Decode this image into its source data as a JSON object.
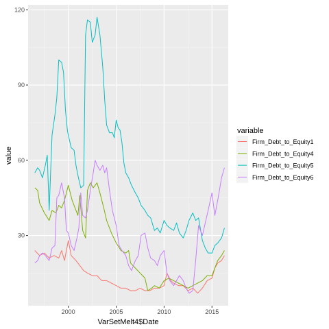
{
  "chart_data": {
    "type": "line",
    "title": "",
    "xlabel": "VarSetMelt4$Date",
    "ylabel": "value",
    "xlim": [
      1995.8,
      2016.7
    ],
    "ylim": [
      2,
      122
    ],
    "x_ticks": [
      2000,
      2005,
      2010,
      2015
    ],
    "x_tick_labels": [
      "2000",
      "2005",
      "2010",
      "2015"
    ],
    "y_ticks": [
      30,
      60,
      90,
      120
    ],
    "y_tick_labels": [
      "30",
      "60",
      "90",
      "120"
    ],
    "grid": true,
    "legend": {
      "title": "variable",
      "position": "right"
    },
    "series": [
      {
        "name": "Firm_Debt_to_Equity1",
        "color": "#F8766D",
        "points": [
          [
            1996.5,
            24
          ],
          [
            1997.0,
            22
          ],
          [
            1997.5,
            23
          ],
          [
            1998.0,
            21
          ],
          [
            1998.5,
            22
          ],
          [
            1999.0,
            21
          ],
          [
            1999.3,
            24
          ],
          [
            1999.6,
            20
          ],
          [
            2000.0,
            28
          ],
          [
            2000.3,
            22
          ],
          [
            2000.8,
            20
          ],
          [
            2001.2,
            18
          ],
          [
            2001.6,
            16
          ],
          [
            2002.0,
            15
          ],
          [
            2002.5,
            14
          ],
          [
            2003.0,
            14
          ],
          [
            2003.5,
            12
          ],
          [
            2004.0,
            12
          ],
          [
            2004.5,
            11
          ],
          [
            2005.0,
            10
          ],
          [
            2005.5,
            9
          ],
          [
            2006.0,
            9
          ],
          [
            2006.5,
            8
          ],
          [
            2007.0,
            8
          ],
          [
            2007.5,
            9
          ],
          [
            2008.0,
            8
          ],
          [
            2008.5,
            8
          ],
          [
            2009.0,
            9
          ],
          [
            2009.5,
            9
          ],
          [
            2010.0,
            10
          ],
          [
            2010.3,
            15
          ],
          [
            2010.7,
            12
          ],
          [
            2011.0,
            11
          ],
          [
            2011.5,
            10
          ],
          [
            2012.0,
            10
          ],
          [
            2012.5,
            8
          ],
          [
            2013.0,
            9
          ],
          [
            2013.5,
            7
          ],
          [
            2014.0,
            9
          ],
          [
            2014.5,
            12
          ],
          [
            2015.0,
            13
          ],
          [
            2015.3,
            17
          ],
          [
            2015.6,
            19
          ],
          [
            2016.0,
            20
          ],
          [
            2016.3,
            22
          ]
        ]
      },
      {
        "name": "Firm_Debt_to_Equity4",
        "color": "#7CAE00",
        "points": [
          [
            1996.5,
            49
          ],
          [
            1996.8,
            48
          ],
          [
            1997.0,
            43
          ],
          [
            1997.5,
            39
          ],
          [
            1998.0,
            36
          ],
          [
            1998.3,
            40
          ],
          [
            1998.7,
            39
          ],
          [
            1999.0,
            42
          ],
          [
            1999.3,
            41
          ],
          [
            1999.6,
            44
          ],
          [
            2000.0,
            50
          ],
          [
            2000.4,
            44
          ],
          [
            2000.8,
            40
          ],
          [
            2001.0,
            38
          ],
          [
            2001.2,
            46
          ],
          [
            2001.5,
            32
          ],
          [
            2001.8,
            29
          ],
          [
            2002.0,
            48
          ],
          [
            2002.3,
            51
          ],
          [
            2002.6,
            49
          ],
          [
            2003.0,
            51
          ],
          [
            2003.3,
            47
          ],
          [
            2003.7,
            41
          ],
          [
            2004.0,
            36
          ],
          [
            2004.5,
            31
          ],
          [
            2005.0,
            27
          ],
          [
            2005.5,
            24
          ],
          [
            2006.0,
            23
          ],
          [
            2006.3,
            24
          ],
          [
            2006.5,
            19
          ],
          [
            2007.0,
            17
          ],
          [
            2007.5,
            15
          ],
          [
            2008.0,
            13
          ],
          [
            2008.3,
            8
          ],
          [
            2008.7,
            9
          ],
          [
            2009.0,
            10
          ],
          [
            2009.5,
            9
          ],
          [
            2010.0,
            12
          ],
          [
            2010.5,
            13
          ],
          [
            2011.0,
            12
          ],
          [
            2011.5,
            11
          ],
          [
            2012.0,
            10
          ],
          [
            2012.5,
            9
          ],
          [
            2013.0,
            10
          ],
          [
            2013.5,
            11
          ],
          [
            2014.0,
            12
          ],
          [
            2014.5,
            14
          ],
          [
            2015.0,
            14
          ],
          [
            2015.3,
            17
          ],
          [
            2015.6,
            20
          ],
          [
            2016.0,
            22
          ],
          [
            2016.3,
            24
          ]
        ]
      },
      {
        "name": "Firm_Debt_to_Equity5",
        "color": "#00BFC4",
        "points": [
          [
            1996.5,
            55
          ],
          [
            1996.8,
            57
          ],
          [
            1997.0,
            56
          ],
          [
            1997.3,
            53
          ],
          [
            1997.6,
            58
          ],
          [
            1997.8,
            62
          ],
          [
            1998.0,
            40
          ],
          [
            1998.3,
            70
          ],
          [
            1998.6,
            78
          ],
          [
            1998.8,
            85
          ],
          [
            1999.0,
            100
          ],
          [
            1999.3,
            99
          ],
          [
            1999.5,
            95
          ],
          [
            1999.7,
            80
          ],
          [
            1999.9,
            72
          ],
          [
            2000.0,
            70
          ],
          [
            2000.3,
            65
          ],
          [
            2000.6,
            64
          ],
          [
            2000.8,
            58
          ],
          [
            2001.0,
            54
          ],
          [
            2001.3,
            49
          ],
          [
            2001.6,
            50
          ],
          [
            2001.8,
            110
          ],
          [
            2002.0,
            116
          ],
          [
            2002.3,
            115
          ],
          [
            2002.5,
            107
          ],
          [
            2002.8,
            110
          ],
          [
            2003.0,
            117
          ],
          [
            2003.3,
            110
          ],
          [
            2003.6,
            97
          ],
          [
            2003.8,
            84
          ],
          [
            2004.0,
            74
          ],
          [
            2004.3,
            71
          ],
          [
            2004.6,
            71
          ],
          [
            2004.8,
            69
          ],
          [
            2005.0,
            76
          ],
          [
            2005.2,
            73
          ],
          [
            2005.4,
            72
          ],
          [
            2005.6,
            67
          ],
          [
            2005.8,
            59
          ],
          [
            2006.0,
            55
          ],
          [
            2006.3,
            53
          ],
          [
            2006.6,
            50
          ],
          [
            2007.0,
            47
          ],
          [
            2007.3,
            45
          ],
          [
            2007.6,
            42
          ],
          [
            2008.0,
            40
          ],
          [
            2008.3,
            38
          ],
          [
            2008.6,
            37
          ],
          [
            2009.0,
            32
          ],
          [
            2009.3,
            33
          ],
          [
            2009.6,
            31
          ],
          [
            2010.0,
            36
          ],
          [
            2010.3,
            34
          ],
          [
            2010.6,
            33
          ],
          [
            2011.0,
            32
          ],
          [
            2011.3,
            35
          ],
          [
            2011.6,
            31
          ],
          [
            2012.0,
            29
          ],
          [
            2012.3,
            32
          ],
          [
            2012.6,
            36
          ],
          [
            2013.0,
            39
          ],
          [
            2013.3,
            36
          ],
          [
            2013.6,
            37
          ],
          [
            2014.0,
            28
          ],
          [
            2014.3,
            25
          ],
          [
            2014.6,
            23
          ],
          [
            2015.0,
            23
          ],
          [
            2015.3,
            26
          ],
          [
            2015.6,
            27
          ],
          [
            2016.0,
            29
          ],
          [
            2016.3,
            33
          ]
        ]
      },
      {
        "name": "Firm_Debt_to_Equity6",
        "color": "#C77CFF",
        "points": [
          [
            1996.5,
            19
          ],
          [
            1996.8,
            20
          ],
          [
            1997.0,
            22
          ],
          [
            1997.3,
            23
          ],
          [
            1997.6,
            22
          ],
          [
            1998.0,
            20
          ],
          [
            1998.3,
            25
          ],
          [
            1998.6,
            26
          ],
          [
            1998.8,
            45
          ],
          [
            1999.0,
            46
          ],
          [
            1999.3,
            51
          ],
          [
            1999.6,
            45
          ],
          [
            1999.8,
            32
          ],
          [
            2000.0,
            31
          ],
          [
            2000.3,
            26
          ],
          [
            2000.6,
            24
          ],
          [
            2000.9,
            29
          ],
          [
            2001.1,
            33
          ],
          [
            2001.3,
            47
          ],
          [
            2001.5,
            38
          ],
          [
            2001.8,
            37
          ],
          [
            2002.0,
            40
          ],
          [
            2002.3,
            48
          ],
          [
            2002.6,
            55
          ],
          [
            2002.8,
            60
          ],
          [
            2003.0,
            58
          ],
          [
            2003.3,
            56
          ],
          [
            2003.6,
            58
          ],
          [
            2003.8,
            55
          ],
          [
            2004.0,
            57
          ],
          [
            2004.3,
            48
          ],
          [
            2004.6,
            40
          ],
          [
            2005.0,
            34
          ],
          [
            2005.3,
            26
          ],
          [
            2005.6,
            24
          ],
          [
            2006.0,
            22
          ],
          [
            2006.3,
            18
          ],
          [
            2006.6,
            16
          ],
          [
            2007.0,
            20
          ],
          [
            2007.3,
            22
          ],
          [
            2007.6,
            30
          ],
          [
            2008.0,
            31
          ],
          [
            2008.3,
            25
          ],
          [
            2008.6,
            21
          ],
          [
            2009.0,
            20
          ],
          [
            2009.3,
            18
          ],
          [
            2009.6,
            22
          ],
          [
            2010.0,
            24
          ],
          [
            2010.3,
            15
          ],
          [
            2010.6,
            12
          ],
          [
            2011.0,
            10
          ],
          [
            2011.3,
            12
          ],
          [
            2011.6,
            14
          ],
          [
            2012.0,
            12
          ],
          [
            2012.3,
            9
          ],
          [
            2012.6,
            7
          ],
          [
            2013.0,
            8
          ],
          [
            2013.3,
            20
          ],
          [
            2013.6,
            34
          ],
          [
            2014.0,
            30
          ],
          [
            2014.3,
            35
          ],
          [
            2014.6,
            40
          ],
          [
            2015.0,
            47
          ],
          [
            2015.3,
            38
          ],
          [
            2015.6,
            44
          ],
          [
            2016.0,
            53
          ],
          [
            2016.3,
            57
          ]
        ]
      }
    ]
  }
}
